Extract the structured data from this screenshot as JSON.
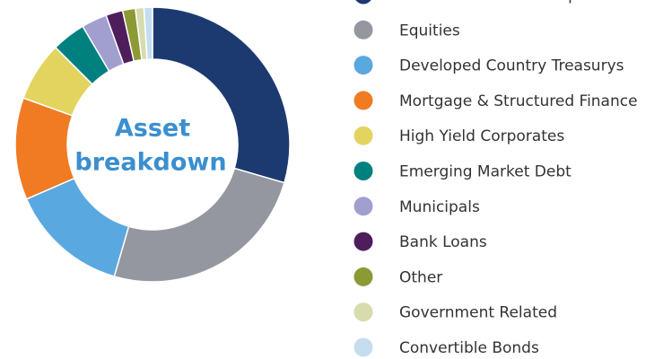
{
  "chart_data": {
    "type": "donut",
    "center_text": [
      "Asset",
      "breakdown"
    ],
    "series": [
      {
        "name": "Investment Grade Corporates",
        "color": "#1c3a70",
        "value": 29.5
      },
      {
        "name": "Equities",
        "color": "#9597a0",
        "value": 25
      },
      {
        "name": "Developed Country Treasurys",
        "color": "#5aa8e0",
        "value": 14
      },
      {
        "name": "Mortgage & Structured Finance",
        "color": "#f07b22",
        "value": 12
      },
      {
        "name": "High Yield Corporates",
        "color": "#e3d460",
        "value": 7
      },
      {
        "name": "Emerging Market Debt",
        "color": "#00807f",
        "value": 4
      },
      {
        "name": "Municipals",
        "color": "#a09fd0",
        "value": 3
      },
      {
        "name": "Bank Loans",
        "color": "#4e1e5c",
        "value": 2
      },
      {
        "name": "Other",
        "color": "#8b9a35",
        "value": 1.5
      },
      {
        "name": "Government Related",
        "color": "#d7dbae",
        "value": 1
      },
      {
        "name": "Convertible Bonds",
        "color": "#c4def0",
        "value": 1
      }
    ]
  }
}
